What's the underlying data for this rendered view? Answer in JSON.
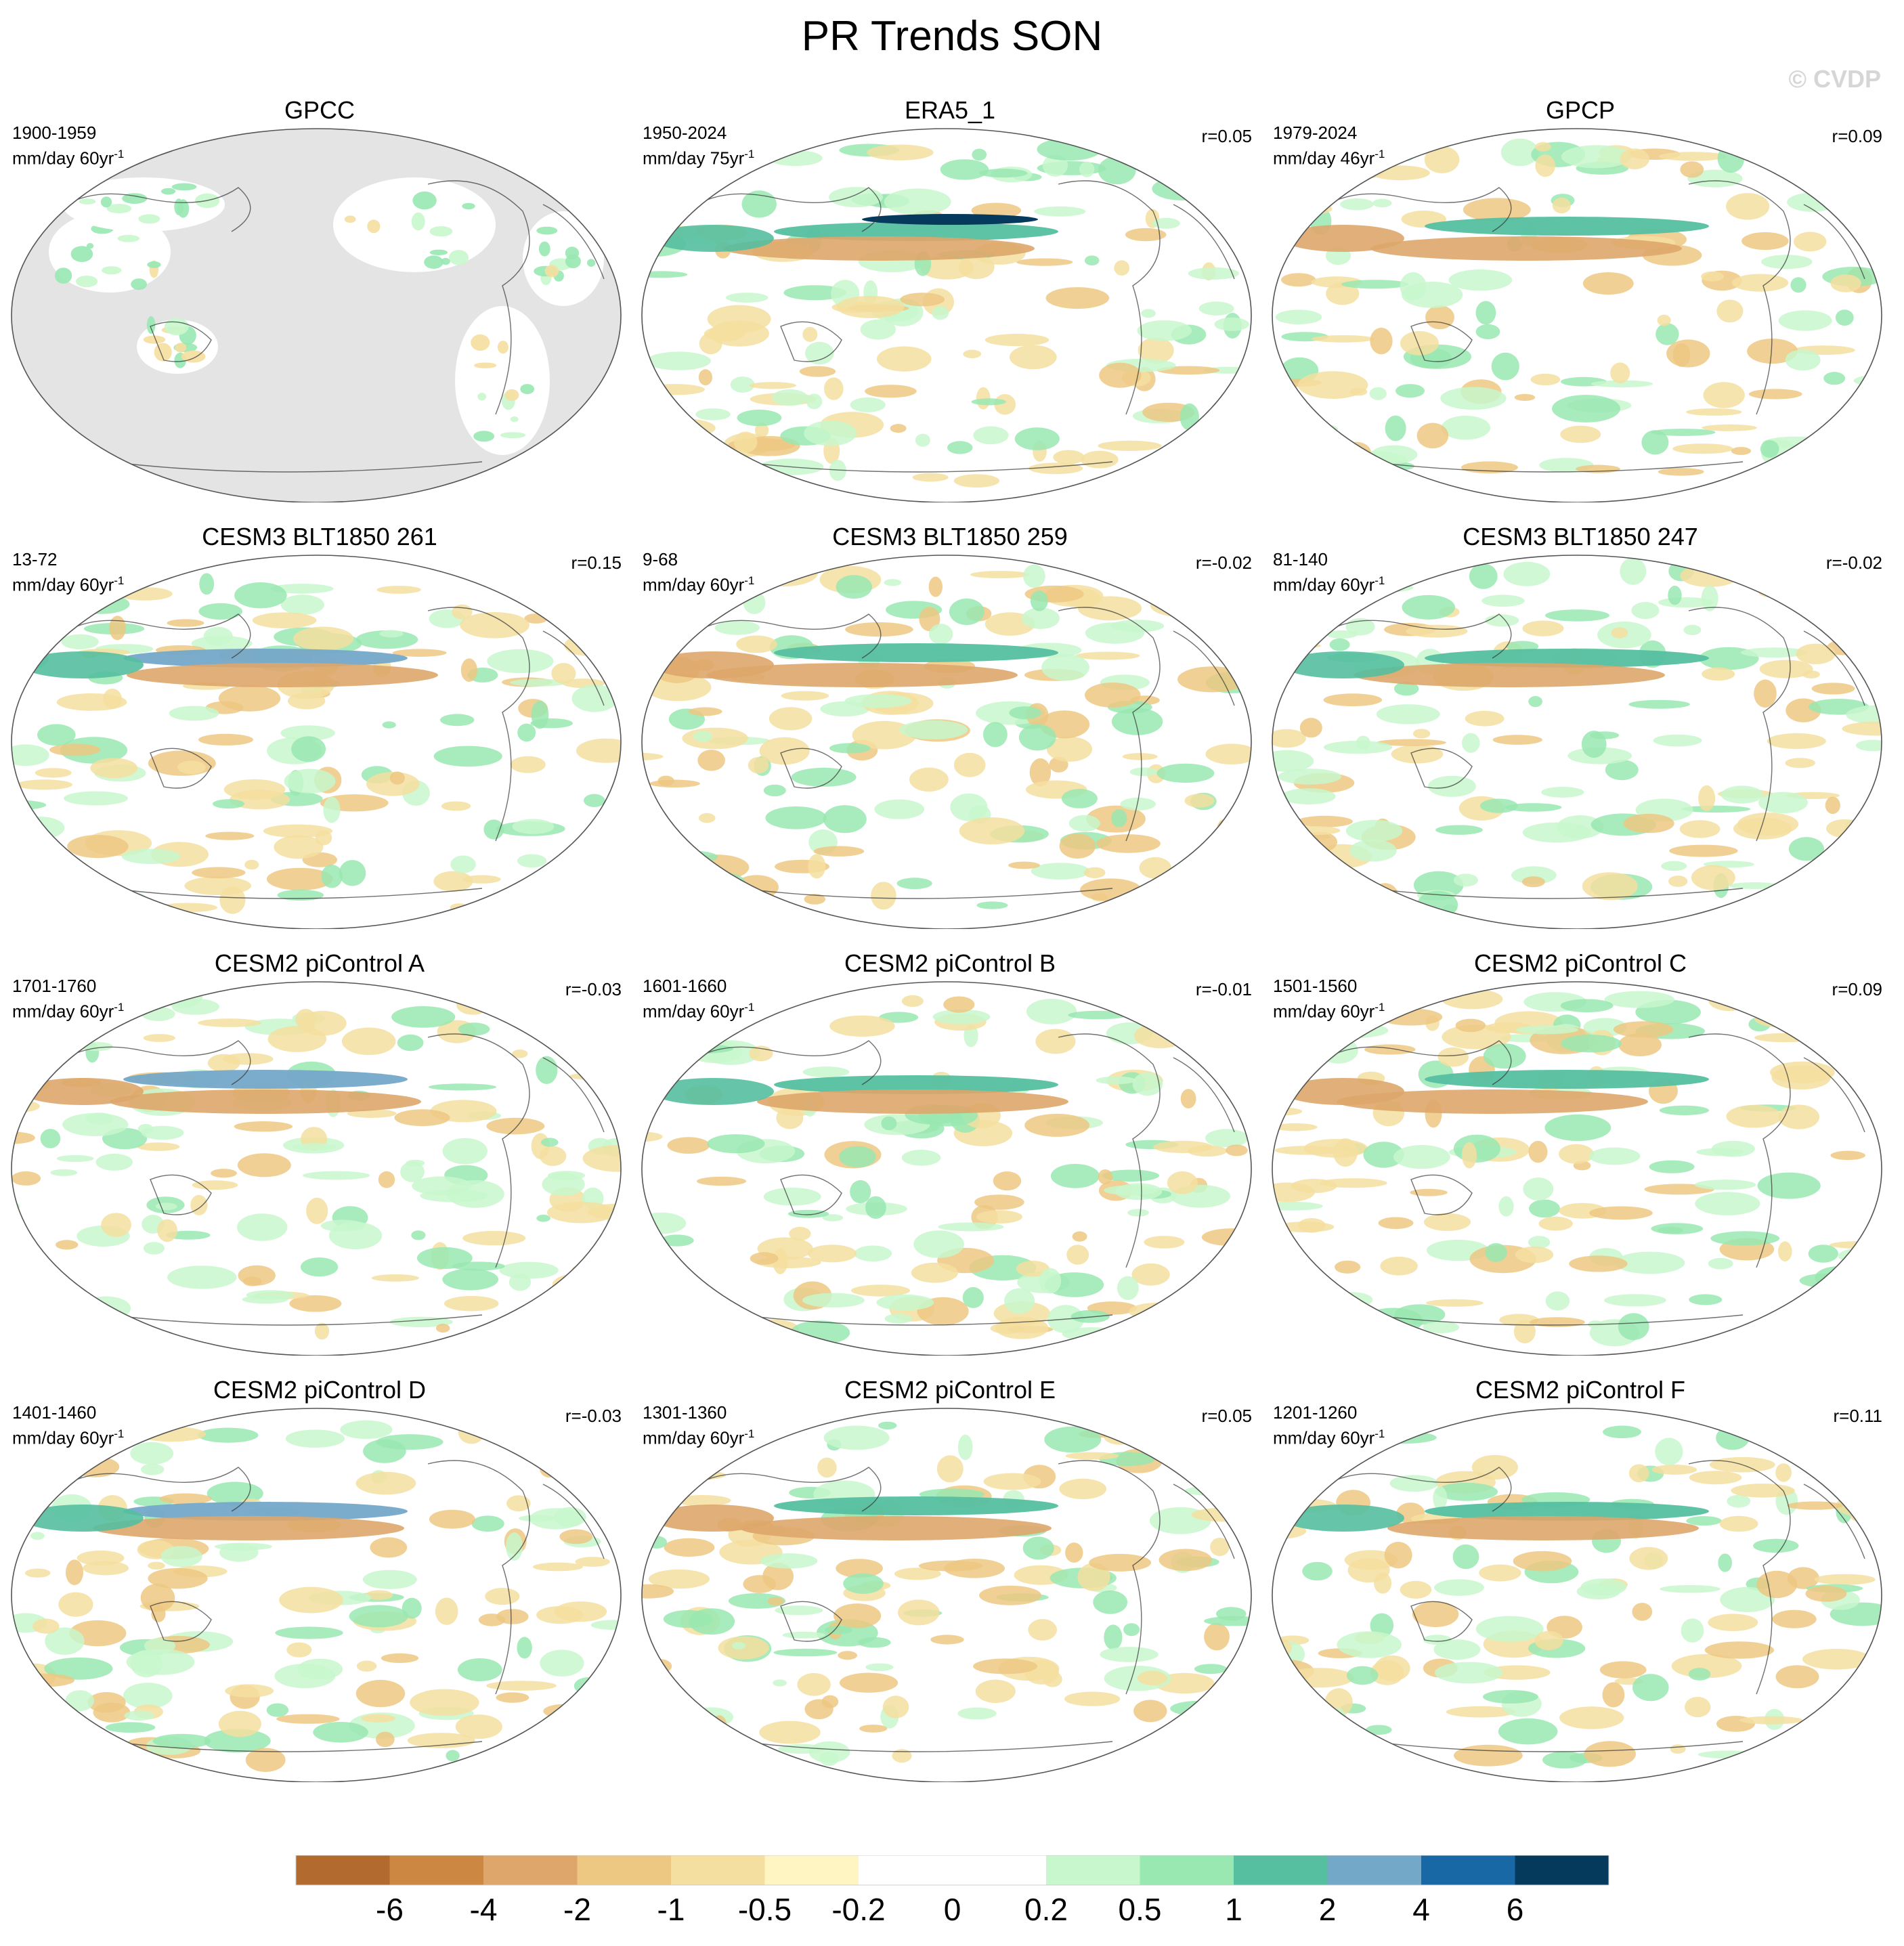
{
  "title": "PR Trends SON",
  "watermark": "© CVDP",
  "chart_data": {
    "type": "heatmap",
    "title": "PR Trends SON",
    "projection": "Robinson-like global maps centered on the Pacific",
    "colorbar": {
      "levels": [
        "-6",
        "-4",
        "-2",
        "-1",
        "-0.5",
        "-0.2",
        "0",
        "0.2",
        "0.5",
        "1",
        "2",
        "4",
        "6"
      ],
      "colors": [
        "#b36a2e",
        "#cc8743",
        "#dea66a",
        "#edc882",
        "#f5dfa0",
        "#fff5c3",
        "#ffffff",
        "#ffffff",
        "#c8f7cd",
        "#99e8b2",
        "#55bfa0",
        "#74a8c9",
        "#1968a6",
        "#053a5c"
      ]
    },
    "panels": [
      {
        "name": "GPCC",
        "period": "1900-1959",
        "units": "mm/day 60yr",
        "r": "",
        "masked": true
      },
      {
        "name": "ERA5_1",
        "period": "1950-2024",
        "units": "mm/day 75yr",
        "r": "r=0.05",
        "masked": false
      },
      {
        "name": "GPCP",
        "period": "1979-2024",
        "units": "mm/day 46yr",
        "r": "r=0.09",
        "masked": false
      },
      {
        "name": "CESM3 BLT1850 261",
        "period": "13-72",
        "units": "mm/day 60yr",
        "r": "r=0.15",
        "masked": false
      },
      {
        "name": "CESM3 BLT1850 259",
        "period": "9-68",
        "units": "mm/day 60yr",
        "r": "r=-0.02",
        "masked": false
      },
      {
        "name": "CESM3 BLT1850 247",
        "period": "81-140",
        "units": "mm/day 60yr",
        "r": "r=-0.02",
        "masked": false
      },
      {
        "name": "CESM2 piControl A",
        "period": "1701-1760",
        "units": "mm/day 60yr",
        "r": "r=-0.03",
        "masked": false
      },
      {
        "name": "CESM2 piControl B",
        "period": "1601-1660",
        "units": "mm/day 60yr",
        "r": "r=-0.01",
        "masked": false
      },
      {
        "name": "CESM2 piControl C",
        "period": "1501-1560",
        "units": "mm/day 60yr",
        "r": "r=0.09",
        "masked": false
      },
      {
        "name": "CESM2 piControl D",
        "period": "1401-1460",
        "units": "mm/day 60yr",
        "r": "r=-0.03",
        "masked": false
      },
      {
        "name": "CESM2 piControl E",
        "period": "1301-1360",
        "units": "mm/day 60yr",
        "r": "r=0.05",
        "masked": false
      },
      {
        "name": "CESM2 piControl F",
        "period": "1201-1260",
        "units": "mm/day 60yr",
        "r": "r=0.11",
        "masked": false
      }
    ]
  }
}
